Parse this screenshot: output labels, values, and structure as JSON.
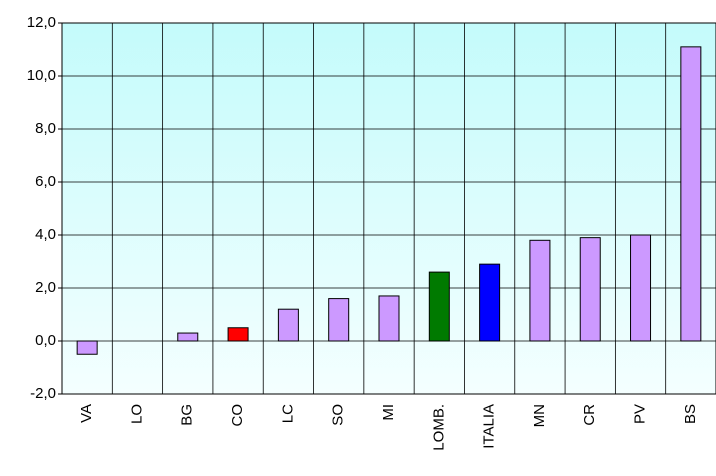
{
  "chart_data": {
    "type": "bar",
    "categories": [
      "VA",
      "LO",
      "BG",
      "CO",
      "LC",
      "SO",
      "MI",
      "LOMB.",
      "ITALIA",
      "MN",
      "CR",
      "PV",
      "BS"
    ],
    "values": [
      -0.5,
      0,
      0.3,
      0.5,
      1.2,
      1.6,
      1.7,
      2.6,
      2.9,
      3.8,
      3.9,
      4.0,
      11.1
    ],
    "colors": [
      "#cc99ff",
      "#cc99ff",
      "#cc99ff",
      "#ff0000",
      "#cc99ff",
      "#cc99ff",
      "#cc99ff",
      "#007a00",
      "#0000ff",
      "#cc99ff",
      "#cc99ff",
      "#cc99ff",
      "#cc99ff"
    ],
    "ylim": [
      -2,
      12
    ],
    "yticks": [
      {
        "value": -2,
        "label": "-2,0"
      },
      {
        "value": 0,
        "label": "0,0"
      },
      {
        "value": 2,
        "label": "2,0"
      },
      {
        "value": 4,
        "label": "4,0"
      },
      {
        "value": 6,
        "label": "6,0"
      },
      {
        "value": 8,
        "label": "8,0"
      },
      {
        "value": 10,
        "label": "10,0"
      },
      {
        "value": 12,
        "label": "12,0"
      }
    ],
    "grid": true
  }
}
